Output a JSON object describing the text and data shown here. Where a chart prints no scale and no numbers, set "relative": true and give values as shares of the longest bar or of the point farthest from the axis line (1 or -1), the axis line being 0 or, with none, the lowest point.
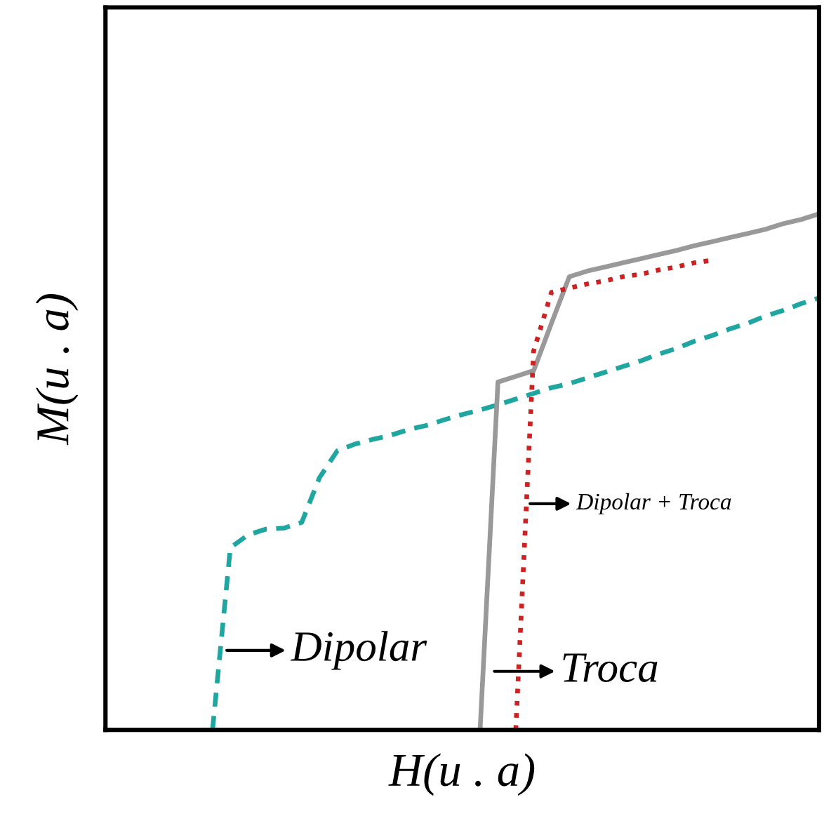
{
  "chart_data": {
    "type": "line",
    "relative": true,
    "xlabel": "H(u . a)",
    "ylabel": "M(u . a)",
    "categories": [
      null,
      null,
      null,
      null,
      null,
      null,
      null,
      null,
      null,
      null,
      null,
      null,
      null,
      null,
      null,
      null,
      null,
      null,
      null,
      null,
      null,
      null,
      null,
      null,
      null,
      null,
      null,
      null,
      null,
      null,
      null,
      null,
      null,
      null,
      null,
      null,
      null,
      null,
      null,
      null,
      null
    ],
    "tick_labels": false,
    "grid": false,
    "legend": false,
    "marker": "none",
    "series": [
      {
        "color": "#20a6a0",
        "line_style": "dashed",
        "values": [
          null,
          null,
          null,
          null,
          null,
          null,
          0,
          0.353,
          0.378,
          0.389,
          0.391,
          0.402,
          0.489,
          0.541,
          0.554,
          0.563,
          0.571,
          0.582,
          0.59,
          0.601,
          0.611,
          0.62,
          0.63,
          0.641,
          0.652,
          0.663,
          0.671,
          0.682,
          0.693,
          0.704,
          0.715,
          0.728,
          0.739,
          0.753,
          0.764,
          0.777,
          0.788,
          0.802,
          0.813,
          0.826,
          0.837
        ]
      },
      {
        "color": "#999999",
        "line_style": "solid",
        "values": [
          null,
          null,
          null,
          null,
          null,
          null,
          null,
          null,
          null,
          null,
          null,
          null,
          null,
          null,
          null,
          null,
          null,
          null,
          null,
          null,
          null,
          0,
          0.674,
          0.685,
          0.696,
          0.788,
          0.878,
          0.889,
          0.897,
          0.905,
          0.913,
          0.921,
          0.929,
          0.938,
          0.946,
          0.954,
          0.962,
          0.97,
          0.981,
          0.989,
          1
        ]
      },
      {
        "color": "#cc2222",
        "line_style": "dotted",
        "values": [
          null,
          null,
          null,
          null,
          null,
          null,
          null,
          null,
          null,
          null,
          null,
          null,
          null,
          null,
          null,
          null,
          null,
          null,
          null,
          null,
          null,
          null,
          null,
          0,
          0.734,
          0.848,
          0.856,
          0.864,
          0.87,
          0.878,
          0.883,
          0.891,
          0.897,
          0.905,
          0.91,
          null,
          null,
          null,
          null,
          null,
          null
        ]
      }
    ],
    "annotations": [
      "Dipolar",
      "Troca",
      "Dipolar + Troca"
    ]
  }
}
